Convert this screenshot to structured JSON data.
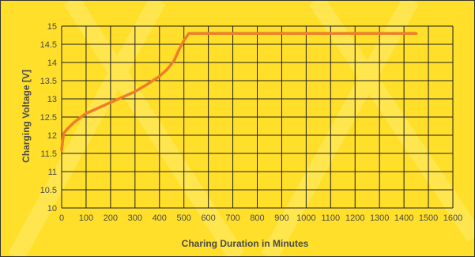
{
  "chart_data": {
    "type": "line",
    "title": "",
    "xlabel": "Charing Duration in Minutes",
    "ylabel": "Charging Voltage [V]",
    "xlim": [
      0,
      1600
    ],
    "ylim": [
      10,
      15
    ],
    "x_ticks": [
      0,
      100,
      200,
      300,
      400,
      500,
      600,
      700,
      800,
      900,
      1000,
      1100,
      1200,
      1300,
      1400,
      1500,
      1600
    ],
    "y_ticks": [
      10,
      10.5,
      11,
      11.5,
      12,
      12.5,
      13,
      13.5,
      14,
      14.5,
      15
    ],
    "x_tick_labels": [
      "0",
      "100",
      "200",
      "300",
      "400",
      "500",
      "600",
      "700",
      "800",
      "900",
      "1000",
      "1100",
      "1200",
      "1300",
      "1400",
      "1500",
      "1600"
    ],
    "y_tick_labels": [
      "10",
      "10.5",
      "11",
      "11.5",
      "12",
      "12.5",
      "13",
      "13.5",
      "14",
      "14.5",
      "15"
    ],
    "grid": true,
    "legend": "none",
    "series": [
      {
        "x": [
          0,
          8,
          20,
          50,
          100,
          150,
          200,
          250,
          300,
          350,
          400,
          430,
          460,
          480,
          500,
          520,
          600,
          800,
          1000,
          1200,
          1400,
          1450
        ],
        "values": [
          11.6,
          12.05,
          12.15,
          12.35,
          12.6,
          12.75,
          12.9,
          13.05,
          13.2,
          13.4,
          13.62,
          13.8,
          14.05,
          14.35,
          14.6,
          14.8,
          14.8,
          14.8,
          14.8,
          14.8,
          14.8,
          14.8
        ],
        "color": "#ee7d2a"
      }
    ],
    "colors": {
      "background": "#ffdf2a",
      "grid": "#1f1f1f",
      "line": "#ee7d2a",
      "text": "#4a4a4a"
    }
  }
}
